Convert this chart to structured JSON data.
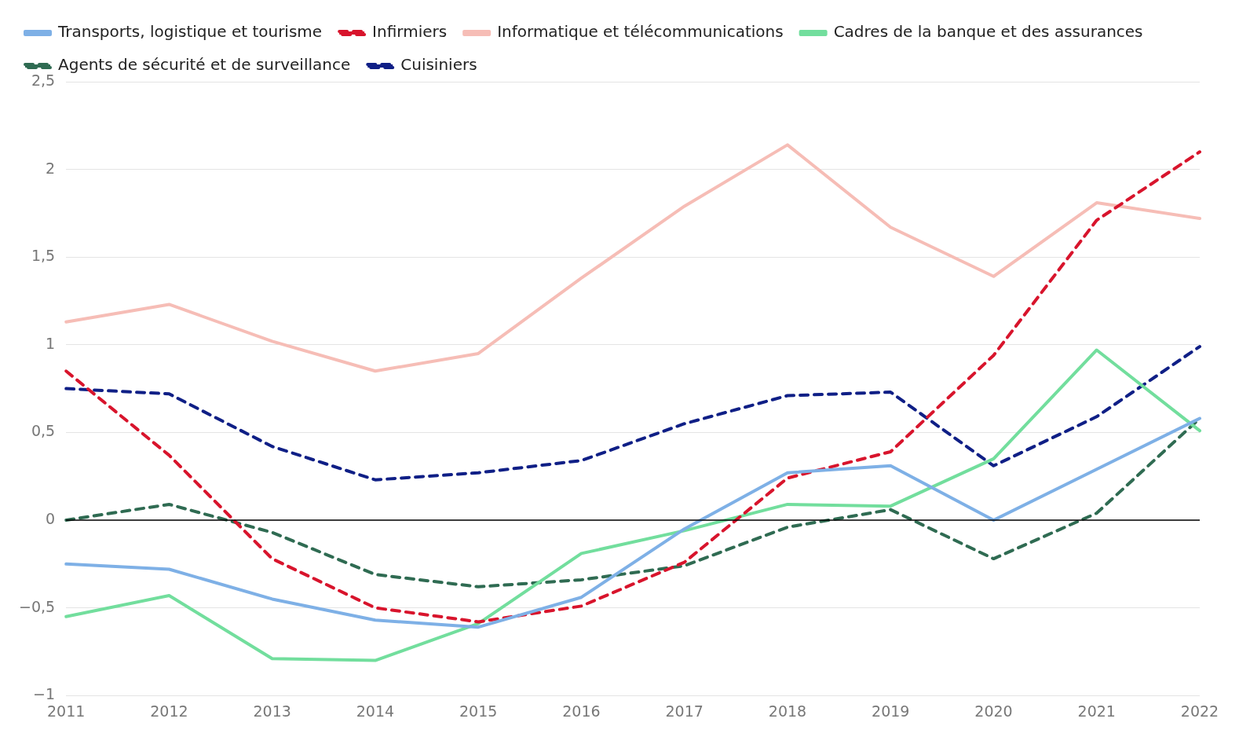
{
  "chart_data": {
    "type": "line",
    "categories": [
      "2011",
      "2012",
      "2013",
      "2014",
      "2015",
      "2016",
      "2017",
      "2018",
      "2019",
      "2020",
      "2021",
      "2022"
    ],
    "series": [
      {
        "name": "Transports, logistique et tourisme",
        "color": "#7eb0e6",
        "line_style": "solid",
        "values": [
          -0.25,
          -0.28,
          -0.45,
          -0.57,
          -0.61,
          -0.44,
          -0.05,
          0.27,
          0.31,
          0,
          0.29,
          0.58
        ]
      },
      {
        "name": "Infirmiers",
        "color": "#d8142c",
        "line_style": "dashed",
        "values": [
          0.85,
          0.37,
          -0.22,
          -0.5,
          -0.58,
          -0.49,
          -0.24,
          0.24,
          0.39,
          0.94,
          1.71,
          2.1
        ]
      },
      {
        "name": "Informatique et télécommunications",
        "color": "#f6bdb6",
        "line_style": "solid",
        "values": [
          1.13,
          1.23,
          1.02,
          0.85,
          0.95,
          1.38,
          1.79,
          2.14,
          1.67,
          1.39,
          1.81,
          1.72
        ]
      },
      {
        "name": "Cadres de la banque et des assurances",
        "color": "#72de9d",
        "line_style": "solid",
        "values": [
          -0.55,
          -0.43,
          -0.79,
          -0.8,
          -0.59,
          -0.19,
          -0.06,
          0.09,
          0.08,
          0.35,
          0.97,
          0.51
        ]
      },
      {
        "name": "Agents de sécurité et de surveillance",
        "color": "#2f6b52",
        "line_style": "dashed",
        "values": [
          0,
          0.09,
          -0.07,
          -0.31,
          -0.38,
          -0.34,
          -0.26,
          -0.04,
          0.06,
          -0.22,
          0.04,
          0.58
        ]
      },
      {
        "name": "Cuisiniers",
        "color": "#0f1f86",
        "line_style": "dashed",
        "values": [
          0.75,
          0.72,
          0.42,
          0.23,
          0.27,
          0.34,
          0.55,
          0.71,
          0.73,
          0.31,
          0.59,
          0.99
        ]
      }
    ],
    "ylim": [
      -1,
      2.5
    ],
    "yticks": [
      {
        "value": -1,
        "label": "−1"
      },
      {
        "value": -0.5,
        "label": "−0,5"
      },
      0,
      {
        "value": 0.5,
        "label": "0,5"
      },
      1,
      {
        "value": 1.5,
        "label": "1,5"
      },
      2,
      {
        "value": 2.5,
        "label": "2,5"
      }
    ],
    "ref_lines": [
      {
        "axis": "y",
        "value": 0,
        "color": "#000000"
      }
    ],
    "grid": "y",
    "legend": "top left",
    "marker": "none"
  }
}
